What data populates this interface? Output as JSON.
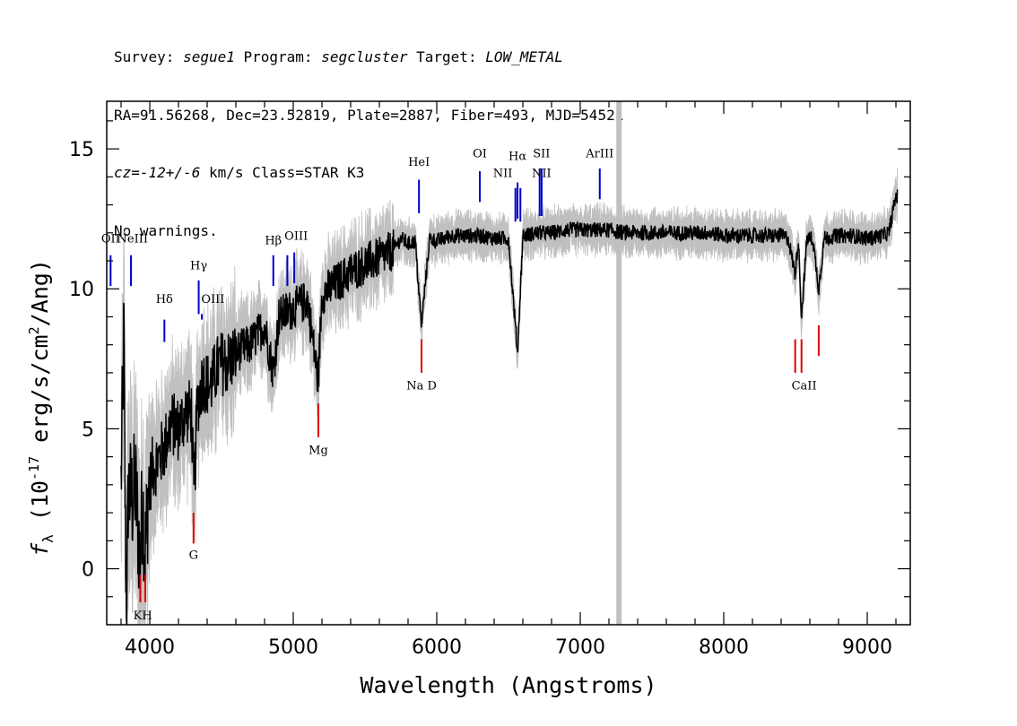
{
  "header": {
    "line1": [
      {
        "text": "Survey: ",
        "italic": false
      },
      {
        "text": "segue1",
        "italic": true
      },
      {
        "text": " Program: ",
        "italic": false
      },
      {
        "text": "segcluster",
        "italic": true
      },
      {
        "text": " Target: ",
        "italic": false
      },
      {
        "text": "LOW_METAL",
        "italic": true
      }
    ],
    "line2": "RA=91.56268, Dec=23.52819, Plate=2887, Fiber=493, MJD=54521",
    "line3": [
      {
        "text": "cz=-12+/-6",
        "italic": true
      },
      {
        "text": " km/s Class=STAR K3",
        "italic": false
      }
    ],
    "line4": "No warnings."
  },
  "chart_data": {
    "type": "line",
    "xlabel": "Wavelength (Angstroms)",
    "ylabel": "f_λ (10^-17 erg/s/cm^2/Ang)",
    "ylabel_parts": {
      "f": "f",
      "sub": "λ",
      "a": " (10",
      "sup1": "-17",
      "b": " erg/s/cm",
      "sup2": "2",
      "c": "/Ang)"
    },
    "xlim": [
      3700,
      9300
    ],
    "ylim": [
      -2.0,
      16.7
    ],
    "xticks": [
      4000,
      5000,
      6000,
      7000,
      8000,
      9000
    ],
    "yticks": [
      0,
      5,
      10,
      15
    ],
    "grid": false,
    "masked_wavelength": 7270,
    "series": [
      {
        "role": "spectrum",
        "color": "#000000",
        "x": [
          3800,
          3820,
          3830,
          3840,
          3850,
          3880,
          3900,
          3933,
          3950,
          3968,
          3990,
          4020,
          4060,
          4100,
          4150,
          4200,
          4250,
          4290,
          4308,
          4330,
          4370,
          4420,
          4480,
          4550,
          4620,
          4700,
          4800,
          4861,
          4900,
          5000,
          5100,
          5173,
          5200,
          5300,
          5400,
          5500,
          5600,
          5700,
          5750,
          5800,
          5850,
          5893,
          5950,
          6000,
          6100,
          6200,
          6300,
          6400,
          6500,
          6563,
          6600,
          6700,
          6800,
          6900,
          7000,
          7100,
          7200,
          7300,
          7400,
          7500,
          7600,
          7700,
          7800,
          7900,
          8000,
          8100,
          8200,
          8300,
          8400,
          8450,
          8498,
          8520,
          8542,
          8580,
          8620,
          8662,
          8700,
          8800,
          8900,
          9000,
          9100,
          9150,
          9200
        ],
        "y": [
          3.0,
          8.5,
          1.0,
          -1.0,
          2.8,
          2.5,
          3.0,
          0.2,
          2.6,
          0.5,
          2.8,
          3.6,
          3.9,
          4.3,
          5.2,
          5.0,
          5.6,
          5.6,
          2.5,
          5.8,
          6.8,
          6.5,
          7.3,
          7.4,
          7.8,
          8.0,
          8.7,
          7.0,
          9.0,
          9.3,
          9.6,
          6.7,
          9.8,
          10.2,
          10.6,
          10.9,
          11.1,
          11.4,
          11.8,
          11.6,
          11.7,
          8.7,
          11.8,
          11.7,
          11.9,
          11.9,
          11.9,
          11.8,
          11.8,
          7.7,
          11.9,
          12.0,
          12.0,
          12.1,
          12.1,
          12.1,
          12.1,
          12.0,
          12.0,
          12.0,
          12.0,
          12.0,
          12.0,
          12.0,
          11.9,
          11.9,
          11.9,
          11.9,
          11.9,
          11.8,
          10.5,
          11.8,
          9.0,
          11.8,
          11.8,
          10.0,
          11.8,
          11.9,
          11.9,
          11.8,
          11.9,
          12.0,
          13.3
        ]
      },
      {
        "role": "error",
        "color": "#c0c0c0"
      }
    ],
    "emission_lines": [
      {
        "label": "OII",
        "x": 3727,
        "y0": 10.1,
        "y1": 11.2
      },
      {
        "label": "NeIII",
        "x": 3869,
        "y0": 10.1,
        "y1": 11.2
      },
      {
        "label": "Hδ",
        "x": 4102,
        "y0": 8.1,
        "y1": 8.9
      },
      {
        "label": "Hγ",
        "x": 4341,
        "y0": 9.1,
        "y1": 10.3
      },
      {
        "label": "OIII",
        "x": 4363,
        "y0": 8.9,
        "y1": 9.1
      },
      {
        "label": "Hβ",
        "x": 4861,
        "y0": 10.1,
        "y1": 11.2
      },
      {
        "label": "OIII",
        "x": 4959,
        "y0": 10.1,
        "y1": 11.2
      },
      {
        "label": "OIII",
        "x": 5007,
        "y0": 10.2,
        "y1": 11.3
      },
      {
        "label": "HeI",
        "x": 5876,
        "y0": 12.7,
        "y1": 13.9
      },
      {
        "label": "OI",
        "x": 6300,
        "y0": 13.1,
        "y1": 14.2
      },
      {
        "label": "NII",
        "x": 6548,
        "y0": 12.4,
        "y1": 13.6
      },
      {
        "label": "Hα",
        "x": 6563,
        "y0": 12.5,
        "y1": 13.8
      },
      {
        "label": "NII",
        "x": 6583,
        "y0": 12.4,
        "y1": 13.6
      },
      {
        "label": "SII",
        "x": 6717,
        "y0": 12.6,
        "y1": 14.3
      },
      {
        "label": "SII",
        "x": 6731,
        "y0": 12.6,
        "y1": 14.3
      },
      {
        "label": "ArIII",
        "x": 7136,
        "y0": 13.2,
        "y1": 14.3
      }
    ],
    "emission_labels": [
      {
        "text": "OII",
        "x": 3727,
        "y": 11.65
      },
      {
        "text": "NeIII",
        "x": 3880,
        "y": 11.65
      },
      {
        "text": "Hδ",
        "x": 4102,
        "y": 9.5
      },
      {
        "text": "Hγ",
        "x": 4341,
        "y": 10.7
      },
      {
        "text": "OIII",
        "x": 4440,
        "y": 9.5
      },
      {
        "text": "Hβ",
        "x": 4861,
        "y": 11.6
      },
      {
        "text": "OIII",
        "x": 5020,
        "y": 11.75
      },
      {
        "text": "HeI",
        "x": 5876,
        "y": 14.4
      },
      {
        "text": "OI",
        "x": 6300,
        "y": 14.7
      },
      {
        "text": "NII",
        "x": 6460,
        "y": 14.0
      },
      {
        "text": "Hα",
        "x": 6563,
        "y": 14.6
      },
      {
        "text": "SII",
        "x": 6730,
        "y": 14.7
      },
      {
        "text": "NII",
        "x": 6730,
        "y": 14.0
      },
      {
        "text": "ArIII",
        "x": 7136,
        "y": 14.7
      }
    ],
    "absorption_lines": [
      {
        "label": "K",
        "x": 3934,
        "y0": -1.2,
        "y1": -0.2
      },
      {
        "label": "H",
        "x": 3969,
        "y0": -1.2,
        "y1": -0.2
      },
      {
        "label": "G",
        "x": 4305,
        "y0": 0.9,
        "y1": 2.0
      },
      {
        "label": "Mg",
        "x": 5175,
        "y0": 4.7,
        "y1": 5.9
      },
      {
        "label": "Na D",
        "x": 5894,
        "y0": 7.0,
        "y1": 8.2
      },
      {
        "label": "CaII",
        "x": 8498,
        "y0": 7.0,
        "y1": 8.2
      },
      {
        "label": "CaII",
        "x": 8542,
        "y0": 7.0,
        "y1": 8.2
      },
      {
        "label": "CaII",
        "x": 8662,
        "y0": 7.6,
        "y1": 8.7
      }
    ],
    "absorption_labels": [
      {
        "text": "KH",
        "x": 3951,
        "y": -1.8
      },
      {
        "text": "G",
        "x": 4305,
        "y": 0.35
      },
      {
        "text": "Mg",
        "x": 5175,
        "y": 4.1
      },
      {
        "text": "Na D",
        "x": 5894,
        "y": 6.4
      },
      {
        "text": "CaII",
        "x": 8560,
        "y": 6.4
      }
    ],
    "colors": {
      "spectrum": "#000000",
      "error": "#c0c0c0",
      "emission": "#0000cc",
      "absorption": "#dd0000",
      "mask": "#c0c0c0"
    }
  }
}
